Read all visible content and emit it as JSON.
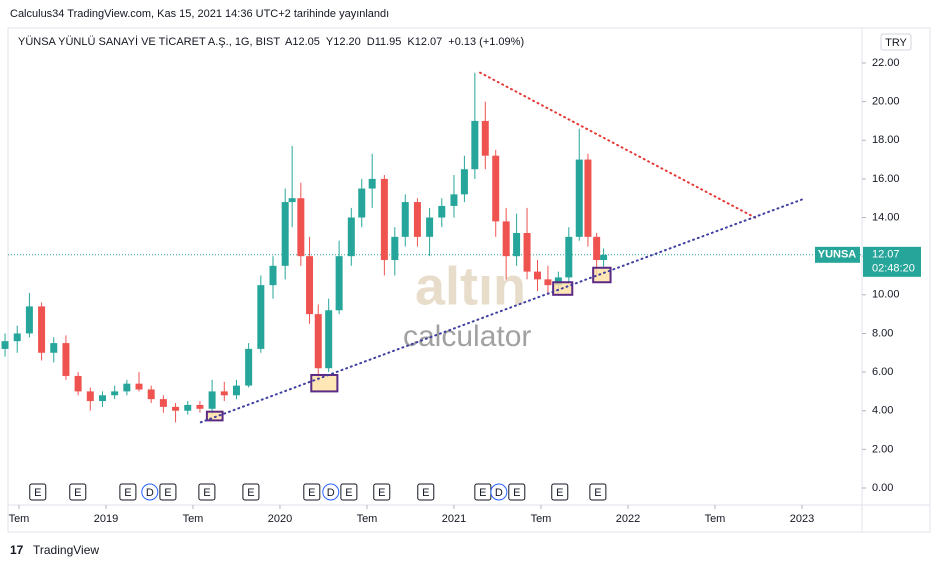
{
  "header": {
    "published": "Calculus34 TradingView.com, Kas 15, 2021 14:36 UTC+2 tarihinde yayınlandı",
    "footer": "TradingView"
  },
  "chart_data": {
    "type": "candlestick",
    "title": "YÜNSA YÜNLÜ SANAYİ VE TİCARET A.Ş., 1G, BIST",
    "ohlc_legend": [
      "A12.05",
      "Y12.20",
      "D11.95",
      "K12.07",
      "+0.13 (+1.09%)"
    ],
    "currency": "TRY",
    "watermark": [
      "altın",
      "calculator"
    ],
    "up_color": "#26a69a",
    "down_color": "#ef5350",
    "x": [
      2018.42,
      2018.49,
      2018.56,
      2018.63,
      2018.7,
      2018.77,
      2018.84,
      2018.91,
      2018.98,
      2019.05,
      2019.12,
      2019.19,
      2019.26,
      2019.33,
      2019.4,
      2019.47,
      2019.54,
      2019.61,
      2019.68,
      2019.75,
      2019.82,
      2019.89,
      2019.96,
      2020.03,
      2020.07,
      2020.12,
      2020.17,
      2020.22,
      2020.28,
      2020.34,
      2020.41,
      2020.47,
      2020.53,
      2020.6,
      2020.66,
      2020.72,
      2020.79,
      2020.86,
      2020.93,
      2021.0,
      2021.06,
      2021.12,
      2021.18,
      2021.24,
      2021.3,
      2021.36,
      2021.42,
      2021.48,
      2021.54,
      2021.6,
      2021.66,
      2021.72,
      2021.77,
      2021.82,
      2021.86
    ],
    "open": [
      7.2,
      7.6,
      8.0,
      9.4,
      7.0,
      7.5,
      5.8,
      5.0,
      4.5,
      4.8,
      5.0,
      5.4,
      5.1,
      4.6,
      4.2,
      4.0,
      4.3,
      4.1,
      5.0,
      4.8,
      5.3,
      7.2,
      10.5,
      11.5,
      14.8,
      15.0,
      12.0,
      9.0,
      6.2,
      9.2,
      12.0,
      14.0,
      15.5,
      16.0,
      11.8,
      13.0,
      14.8,
      13.0,
      14.0,
      14.6,
      15.2,
      16.5,
      19.0,
      17.2,
      13.8,
      12.0,
      13.2,
      11.2,
      10.8,
      10.5,
      10.9,
      13.0,
      17.0,
      13.0,
      11.8
    ],
    "high": [
      8.0,
      8.4,
      10.1,
      9.6,
      7.8,
      7.9,
      6.0,
      5.2,
      5.0,
      5.3,
      5.6,
      6.0,
      5.3,
      4.8,
      4.4,
      4.5,
      4.5,
      5.6,
      5.5,
      5.6,
      7.5,
      11.0,
      12.0,
      15.5,
      17.7,
      15.8,
      13.0,
      9.5,
      9.8,
      12.8,
      14.5,
      16.0,
      17.3,
      16.2,
      13.5,
      15.2,
      15.0,
      14.5,
      15.0,
      16.2,
      17.2,
      21.5,
      20.0,
      17.5,
      14.5,
      14.2,
      14.5,
      11.8,
      11.5,
      11.2,
      13.5,
      18.6,
      17.3,
      13.2,
      12.4
    ],
    "low": [
      6.8,
      7.0,
      7.8,
      6.6,
      6.5,
      5.6,
      4.8,
      4.0,
      4.2,
      4.6,
      4.8,
      5.0,
      4.4,
      3.9,
      3.4,
      3.8,
      3.9,
      3.8,
      4.5,
      4.6,
      5.2,
      7.0,
      9.8,
      10.8,
      13.5,
      11.5,
      8.5,
      5.5,
      6.0,
      9.0,
      11.5,
      13.5,
      14.5,
      11.0,
      11.0,
      12.5,
      12.5,
      12.0,
      13.5,
      14.0,
      14.8,
      16.0,
      16.5,
      13.0,
      10.8,
      11.5,
      10.8,
      10.2,
      10.0,
      10.1,
      10.6,
      12.8,
      12.5,
      10.9,
      11.4
    ],
    "close": [
      7.6,
      8.0,
      9.4,
      7.0,
      7.5,
      5.8,
      5.0,
      4.5,
      4.8,
      5.0,
      5.4,
      5.1,
      4.6,
      4.2,
      4.0,
      4.3,
      4.1,
      5.0,
      4.8,
      5.3,
      7.2,
      10.5,
      11.5,
      14.8,
      15.0,
      12.0,
      9.0,
      6.2,
      9.2,
      12.0,
      14.0,
      15.5,
      16.0,
      11.8,
      13.0,
      14.8,
      13.0,
      14.0,
      14.6,
      15.2,
      16.5,
      19.0,
      17.2,
      13.8,
      12.0,
      13.2,
      11.2,
      10.8,
      10.5,
      10.9,
      13.0,
      17.0,
      13.0,
      11.8,
      12.07
    ],
    "last": {
      "symbol": "YUNSA",
      "value": 12.07,
      "label": "12.07",
      "countdown": "02:48:20",
      "color": "#26a69a"
    },
    "trendlines": [
      {
        "color": "#e53935",
        "x": [
          2021.15,
          2022.74
        ],
        "y": [
          21.5,
          13.95
        ]
      },
      {
        "color": "#3f3fa0",
        "x": [
          2019.545,
          2023.02
        ],
        "y": [
          3.4,
          15.0
        ]
      }
    ],
    "highlights": [
      {
        "x": [
          2019.58,
          2019.67
        ],
        "y": [
          3.5,
          3.95
        ]
      },
      {
        "x": [
          2020.18,
          2020.33
        ],
        "y": [
          5.0,
          5.85
        ]
      },
      {
        "x": [
          2021.57,
          2021.68
        ],
        "y": [
          10.0,
          10.65
        ]
      },
      {
        "x": [
          2021.8,
          2021.9
        ],
        "y": [
          10.65,
          11.4
        ]
      }
    ],
    "events": {
      "x": [
        2018.608,
        2018.838,
        2019.126,
        2019.252,
        2019.356,
        2019.58,
        2019.833,
        2020.183,
        2020.292,
        2020.396,
        2020.585,
        2020.838,
        2021.166,
        2021.258,
        2021.361,
        2021.608,
        2021.827
      ],
      "labels": [
        "E",
        "E",
        "E",
        "D",
        "E",
        "E",
        "E",
        "E",
        "D",
        "E",
        "E",
        "E",
        "E",
        "D",
        "E",
        "E",
        "E"
      ]
    },
    "xlim": [
      2018.437,
      2023.345
    ],
    "xticks": [
      {
        "value": 2018.5,
        "label": "Tem"
      },
      2019,
      {
        "value": 2019.5,
        "label": "Tem"
      },
      2020,
      {
        "value": 2020.5,
        "label": "Tem"
      },
      2021,
      {
        "value": 2021.5,
        "label": "Tem"
      },
      2022,
      {
        "value": 2022.5,
        "label": "Tem"
      },
      2023
    ],
    "ylim": [
      -0.88,
      23.81
    ],
    "yticks": [
      {
        "value": 0,
        "label": "0.00"
      },
      {
        "value": 2,
        "label": "2.00"
      },
      {
        "value": 4,
        "label": "4.00"
      },
      {
        "value": 6,
        "label": "6.00"
      },
      {
        "value": 8,
        "label": "8.00"
      },
      {
        "value": 10,
        "label": "10.00"
      },
      {
        "value": 12,
        "label": "12.00"
      },
      {
        "value": 14,
        "label": "14.00"
      },
      {
        "value": 16,
        "label": "16.00"
      },
      {
        "value": 18,
        "label": "18.00"
      },
      {
        "value": 20,
        "label": "20.00"
      },
      {
        "value": 22,
        "label": "22.00"
      }
    ],
    "grid": false
  }
}
